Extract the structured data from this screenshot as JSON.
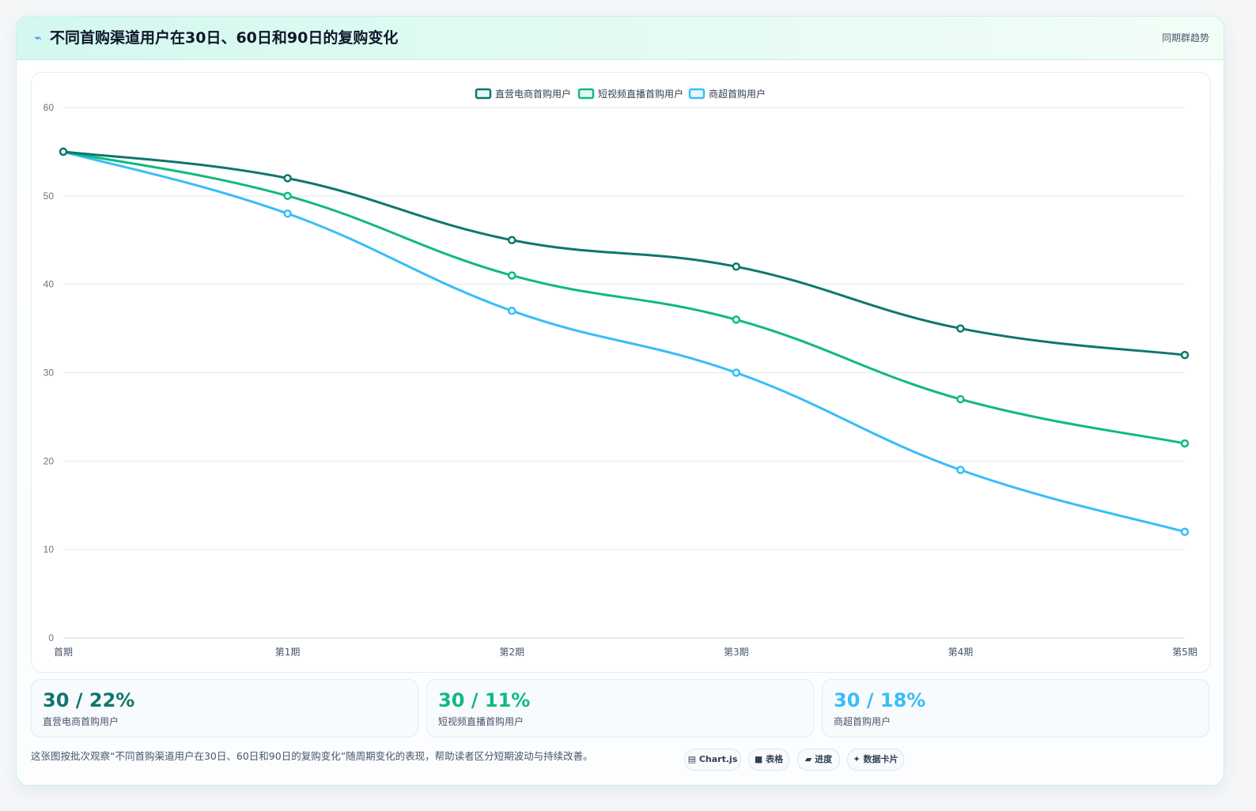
{
  "header": {
    "icon": "lightning-icon",
    "title": "不同首购渠道用户在30日、60日和90日的复购变化",
    "tag": "同期群趋势"
  },
  "chart_data": {
    "type": "line",
    "categories": [
      "首期",
      "第1期",
      "第2期",
      "第3期",
      "第4期",
      "第5期"
    ],
    "series": [
      {
        "name": "直营电商首购用户",
        "color": "#0f766e",
        "values": [
          55,
          52,
          45,
          42,
          35,
          32
        ]
      },
      {
        "name": "短视频直播首购用户",
        "color": "#10b981",
        "values": [
          55,
          50,
          41,
          36,
          27,
          22
        ]
      },
      {
        "name": "商超首购用户",
        "color": "#38bdf8",
        "values": [
          55,
          48,
          37,
          30,
          19,
          12
        ]
      }
    ],
    "ylim": [
      0,
      60
    ],
    "yticks": [
      0,
      10,
      20,
      30,
      40,
      50,
      60
    ],
    "grid": true,
    "legend": "top-center"
  },
  "stats": [
    {
      "value": "30 / 22%",
      "label": "直营电商首购用户",
      "color": "#0f766e"
    },
    {
      "value": "30 / 11%",
      "label": "短视频直播首购用户",
      "color": "#10b981"
    },
    {
      "value": "30 / 18%",
      "label": "商超首购用户",
      "color": "#38bdf8"
    }
  ],
  "footer": {
    "description": "这张图按批次观察“不同首购渠道用户在30日、60日和90日的复购变化”随周期变化的表现，帮助读者区分短期波动与持续改善。",
    "pills": [
      {
        "icon": "▤",
        "label": "Chart.js"
      },
      {
        "icon": "■",
        "label": "表格"
      },
      {
        "icon": "▰",
        "label": "进度"
      },
      {
        "icon": "✦",
        "label": "数据卡片"
      }
    ]
  }
}
